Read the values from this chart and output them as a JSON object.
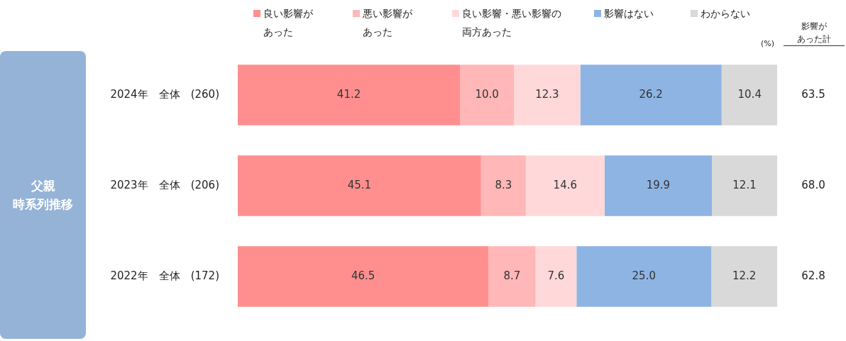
{
  "chart_data": {
    "type": "bar",
    "orientation": "horizontal",
    "stacked": true,
    "categories": [
      "2024年　全体　(260)",
      "2023年　全体　(206)",
      "2022年　全体　(172)"
    ],
    "series": [
      {
        "name": "良い影響があった",
        "color": "#ff8f8f",
        "values": [
          41.2,
          45.1,
          46.5
        ],
        "value_labels": [
          "41.2",
          "45.1",
          "46.5"
        ]
      },
      {
        "name": "悪い影響があった",
        "color": "#ffb7b7",
        "values": [
          10.0,
          8.3,
          8.7
        ],
        "value_labels": [
          "10.0",
          "8.3",
          "8.7"
        ]
      },
      {
        "name": "良い影響・悪い影響の両方あった",
        "color": "#ffd9d9",
        "values": [
          12.3,
          14.6,
          7.6
        ],
        "value_labels": [
          "12.3",
          "14.6",
          "7.6"
        ]
      },
      {
        "name": "影響はない",
        "color": "#8eb4e3",
        "values": [
          26.2,
          19.9,
          25.0
        ],
        "value_labels": [
          "26.2",
          "19.9",
          "25.0"
        ]
      },
      {
        "name": "わからない",
        "color": "#d9d9d9",
        "values": [
          10.4,
          12.1,
          12.2
        ],
        "value_labels": [
          "10.4",
          "12.1",
          "12.2"
        ]
      }
    ],
    "xlim": [
      0,
      100
    ],
    "annotations": [
      "父親",
      "時系列推移",
      "影響が",
      "あった計",
      "(%)",
      "63.5",
      "68.0",
      "62.8"
    ],
    "legend": "top",
    "tick_labels": "y"
  }
}
